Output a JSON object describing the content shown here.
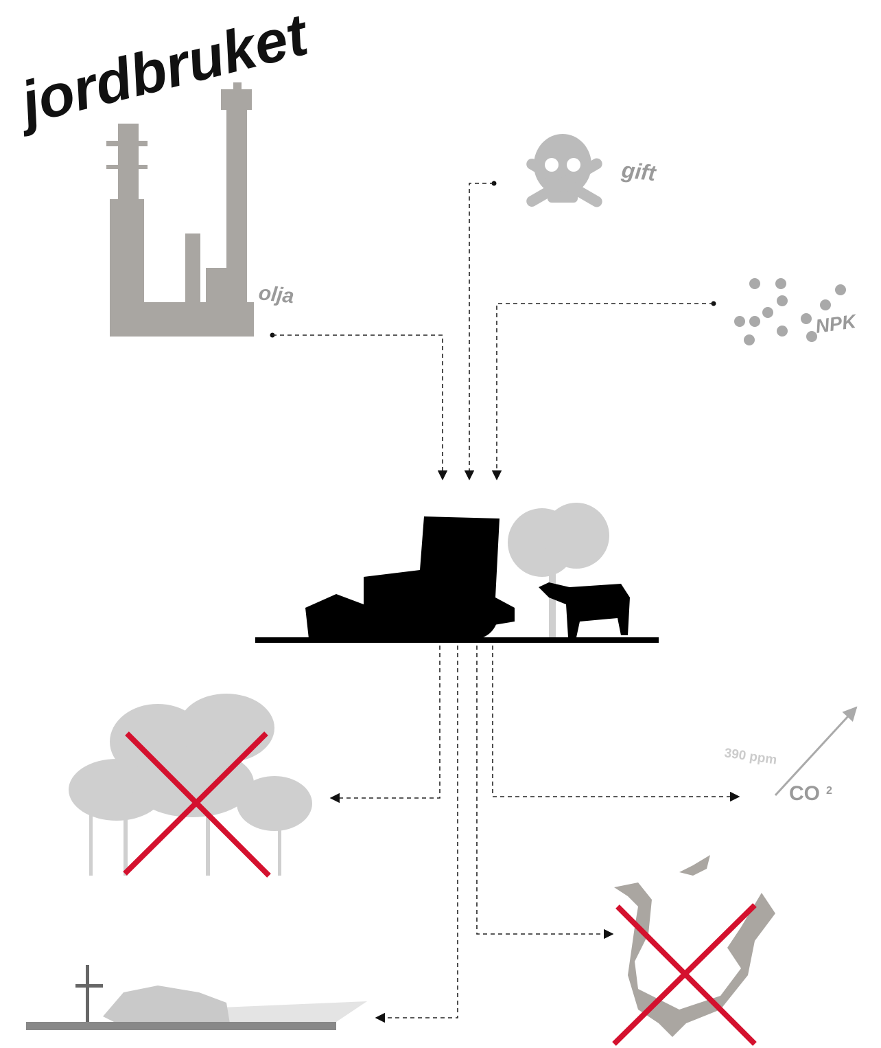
{
  "title": "jordbruket",
  "labels": {
    "oil": "olja",
    "poison": "gift",
    "fertilizer": "NPK",
    "ppm": "390 ppm",
    "co2": "CO",
    "co2_sub": "2"
  }
}
